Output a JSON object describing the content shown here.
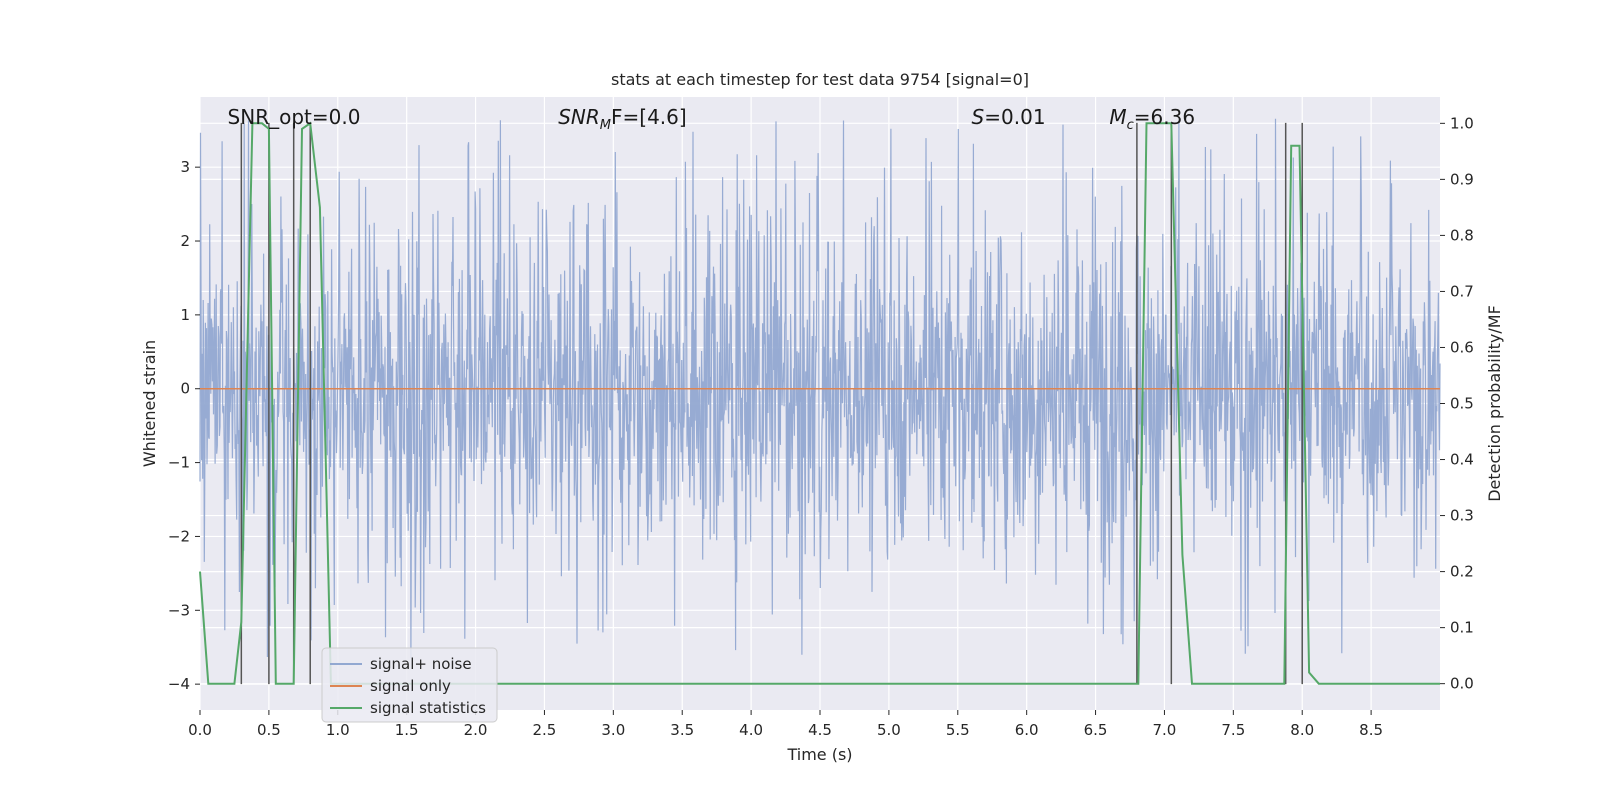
{
  "chart_data": {
    "type": "line",
    "title": "stats at each timestep for test data 9754 [signal=0]",
    "xlabel": "Time (s)",
    "ylabel": "Whitened strain",
    "ylabel_right": "Detection probability/MF",
    "xlim": [
      0,
      9.0
    ],
    "ylim": [
      -4.35,
      3.95
    ],
    "ylim_right": [
      -0.047,
      1.047
    ],
    "x_ticks": [
      "0.0",
      "0.5",
      "1.0",
      "1.5",
      "2.0",
      "2.5",
      "3.0",
      "3.5",
      "4.0",
      "4.5",
      "5.0",
      "5.5",
      "6.0",
      "6.5",
      "7.0",
      "7.5",
      "8.0",
      "8.5"
    ],
    "y_ticks": [
      "-4",
      "-3",
      "-2",
      "-1",
      "0",
      "1",
      "2",
      "3"
    ],
    "y_ticks_right": [
      "0.0",
      "0.1",
      "0.2",
      "0.3",
      "0.4",
      "0.5",
      "0.6",
      "0.7",
      "0.8",
      "0.9",
      "1.0"
    ],
    "annotations": [
      {
        "text": "SNR_opt=0.0",
        "x": 0.2
      },
      {
        "text_main": "SNR",
        "text_sub": "M",
        "text_rest": "F=[4.6]",
        "x": 2.6
      },
      {
        "text_main": "S",
        "text_rest": "=0.01",
        "x": 5.6
      },
      {
        "text_main": "M",
        "text_sub": "c",
        "text_rest": "=6.36",
        "x": 6.6
      }
    ],
    "vlines": [
      0.3,
      0.5,
      0.68,
      0.8,
      6.8,
      7.05,
      7.88,
      8.0
    ],
    "series": [
      {
        "name": "signal+ noise",
        "color": "#92a8d1",
        "kind": "noise",
        "n_points": 2300,
        "x_range": [
          0,
          9.0
        ],
        "typical_abs": 1.2,
        "peak_abs": 3.7
      },
      {
        "name": "signal only",
        "color": "#dd8452",
        "kind": "flat",
        "x": [
          0,
          9.0
        ],
        "values": [
          0,
          0
        ]
      },
      {
        "name": "signal statistics",
        "color": "#55a868",
        "axis": "right",
        "x": [
          0,
          0.06,
          0.25,
          0.3,
          0.38,
          0.45,
          0.5,
          0.55,
          0.68,
          0.74,
          0.8,
          0.87,
          0.95,
          6.81,
          6.87,
          7.05,
          7.13,
          7.2,
          7.87,
          7.92,
          7.98,
          8.05,
          8.12,
          9.0
        ],
        "values": [
          0.2,
          0.0,
          0.0,
          0.11,
          1.0,
          1.0,
          0.99,
          0.0,
          0.0,
          0.99,
          1.0,
          0.85,
          0.0,
          0.0,
          1.0,
          1.0,
          0.23,
          0.0,
          0.0,
          0.96,
          0.96,
          0.02,
          0.0,
          0.0
        ]
      }
    ],
    "legend": {
      "position": "lower-left",
      "entries": [
        "signal+ noise",
        "signal only",
        "signal statistics"
      ]
    },
    "grid": true
  },
  "colors": {
    "background": "#eaeaf2",
    "grid": "#ffffff",
    "vline": "#555555"
  }
}
